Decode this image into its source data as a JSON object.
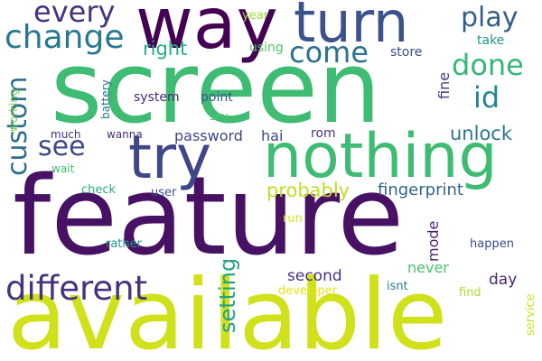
{
  "words": [
    {
      "text": "feature",
      "color": "#471164",
      "vertical": false
    },
    {
      "text": "available",
      "color": "#d0e11c",
      "vertical": false
    },
    {
      "text": "screen",
      "color": "#3fbc73",
      "vertical": false
    },
    {
      "text": "nothing",
      "color": "#3fbc73",
      "vertical": false
    },
    {
      "text": "way",
      "color": "#440154",
      "vertical": false
    },
    {
      "text": "turn",
      "color": "#3b528b",
      "vertical": false
    },
    {
      "text": "try",
      "color": "#3f4788",
      "vertical": false
    },
    {
      "text": "different",
      "color": "#46337e",
      "vertical": false
    },
    {
      "text": "change",
      "color": "#2a788e",
      "vertical": false
    },
    {
      "text": "every",
      "color": "#46327e",
      "vertical": false
    },
    {
      "text": "play",
      "color": "#365d8d",
      "vertical": false
    },
    {
      "text": "done",
      "color": "#35b779",
      "vertical": false
    },
    {
      "text": "come",
      "color": "#2c718e",
      "vertical": false
    },
    {
      "text": "id",
      "color": "#25858e",
      "vertical": false
    },
    {
      "text": "custom",
      "color": "#2e6e8e",
      "vertical": true
    },
    {
      "text": "see",
      "color": "#3e4a89",
      "vertical": false
    },
    {
      "text": "unlock",
      "color": "#2a788e",
      "vertical": false
    },
    {
      "text": "probably",
      "color": "#bddf26",
      "vertical": false
    },
    {
      "text": "right",
      "color": "#25ab82",
      "vertical": false
    },
    {
      "text": "fingerprint",
      "color": "#33638d",
      "vertical": false
    },
    {
      "text": "setting",
      "color": "#20a386",
      "vertical": true
    },
    {
      "text": "second",
      "color": "#46307e",
      "vertical": false
    },
    {
      "text": "day",
      "color": "#482475",
      "vertical": false
    },
    {
      "text": "password",
      "color": "#404588",
      "vertical": false
    },
    {
      "text": "hai",
      "color": "#3f4889",
      "vertical": false
    },
    {
      "text": "never",
      "color": "#4ac16d",
      "vertical": false
    },
    {
      "text": "mode",
      "color": "#481f70",
      "vertical": true
    },
    {
      "text": "fine",
      "color": "#44397f",
      "vertical": true
    },
    {
      "text": "rom",
      "color": "#46337f",
      "vertical": false
    },
    {
      "text": "system",
      "color": "#482878",
      "vertical": false
    },
    {
      "text": "point",
      "color": "#39568c",
      "vertical": false
    },
    {
      "text": "using",
      "color": "#54c568",
      "vertical": false
    },
    {
      "text": "take",
      "color": "#1f958b",
      "vertical": false
    },
    {
      "text": "store",
      "color": "#3e4c8a",
      "vertical": false
    },
    {
      "text": "year",
      "color": "#a0da39",
      "vertical": false
    },
    {
      "text": "battery",
      "color": "#2c728e",
      "vertical": true
    },
    {
      "text": "working",
      "color": "#7ad151",
      "vertical": true
    },
    {
      "text": "much",
      "color": "#46307e",
      "vertical": false
    },
    {
      "text": "wanna",
      "color": "#472d7b",
      "vertical": false
    },
    {
      "text": "say",
      "color": "#4ac16d",
      "vertical": false
    },
    {
      "text": "wait",
      "color": "#3dbc74",
      "vertical": false
    },
    {
      "text": "check",
      "color": "#28ae80",
      "vertical": false
    },
    {
      "text": "user",
      "color": "#3b528b",
      "vertical": false
    },
    {
      "text": "run",
      "color": "#d2e21b",
      "vertical": false
    },
    {
      "text": "rather",
      "color": "#1f968b",
      "vertical": false
    },
    {
      "text": "happen",
      "color": "#3e4a89",
      "vertical": false
    },
    {
      "text": "developer",
      "color": "#e5e419",
      "vertical": false
    },
    {
      "text": "isnt",
      "color": "#277f8e",
      "vertical": false
    },
    {
      "text": "find",
      "color": "#addc30",
      "vertical": false
    },
    {
      "text": "service",
      "color": "#c8e020",
      "vertical": true
    }
  ]
}
